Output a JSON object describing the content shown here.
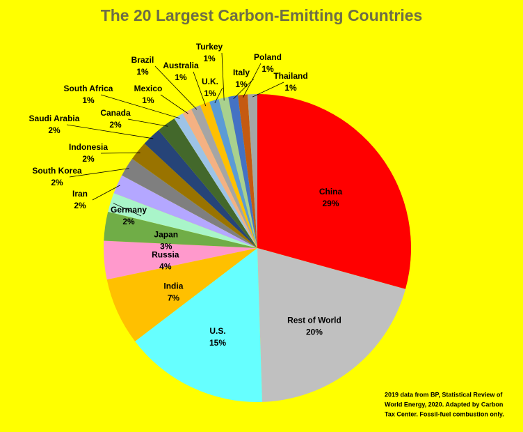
{
  "chart_data": {
    "type": "pie",
    "title": "The 20 Largest Carbon-Emitting Countries",
    "note": [
      "2019 data from BP, Statistical Review of",
      "World Energy, 2020. Adapted by Carbon",
      "Tax Center. Fossil-fuel combustion only."
    ],
    "categories": [
      "China",
      "Rest of World",
      "U.S.",
      "India",
      "Russia",
      "Japan",
      "Germany",
      "Iran",
      "South Korea",
      "Indonesia",
      "Saudi Arabia",
      "Canada",
      "South Africa",
      "Mexico",
      "Brazil",
      "Australia",
      "U.K.",
      "Turkey",
      "Italy",
      "Poland",
      "Thailand"
    ],
    "values": [
      29,
      20,
      15,
      7,
      4,
      3,
      2,
      2,
      2,
      2,
      2,
      2,
      1,
      1,
      1,
      1,
      1,
      1,
      1,
      1,
      1
    ],
    "value_labels": [
      "29%",
      "20%",
      "15%",
      "7%",
      "4%",
      "3%",
      "2%",
      "2%",
      "2%",
      "2%",
      "2%",
      "2%",
      "1%",
      "1%",
      "1%",
      "1%",
      "1%",
      "1%",
      "1%",
      "1%",
      "1%"
    ],
    "colors": [
      "#ff0000",
      "#c0c0c0",
      "#66ffff",
      "#ffc000",
      "#ff99cc",
      "#70ad47",
      "#a9f5c9",
      "#b4a7ff",
      "#7f7f7f",
      "#997300",
      "#264478",
      "#43682b",
      "#9dc3e6",
      "#f4b183",
      "#a5a5a5",
      "#ffc000",
      "#5b9bd5",
      "#a9d18e",
      "#4472c4",
      "#c55a11",
      "#a5a5a5"
    ]
  }
}
